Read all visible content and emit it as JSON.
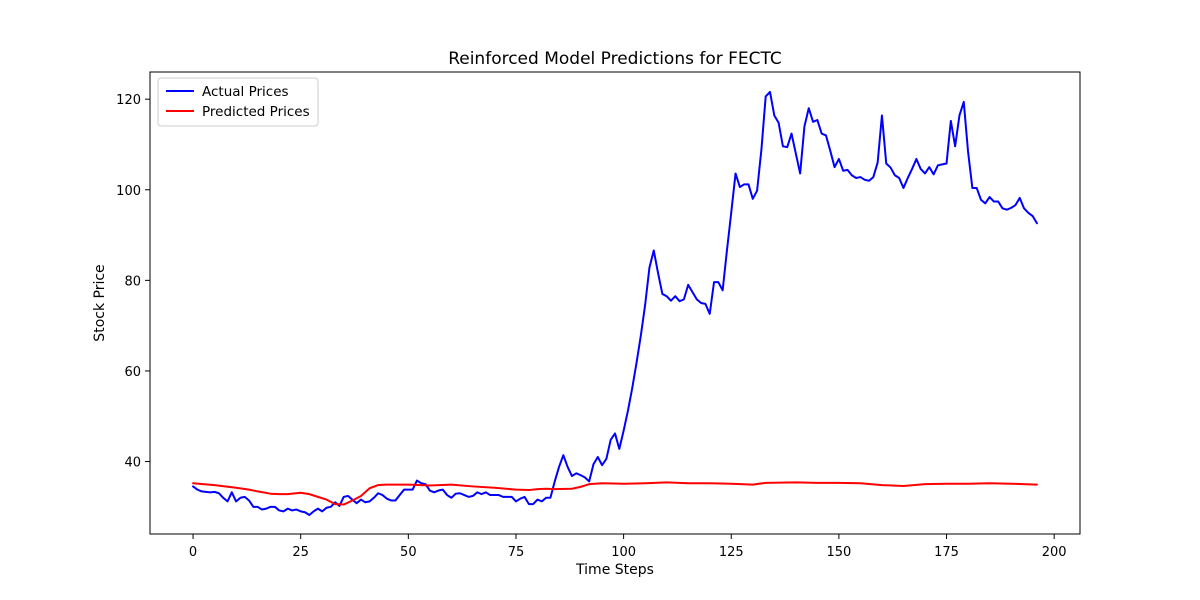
{
  "chart_data": {
    "type": "line",
    "title": "Reinforced Model Predictions for FECTC",
    "xlabel": "Time Steps",
    "ylabel": "Stock Price",
    "xlim": [
      -10,
      206
    ],
    "ylim": [
      24,
      126
    ],
    "xticks": [
      0,
      25,
      50,
      75,
      100,
      125,
      150,
      175,
      200
    ],
    "yticks": [
      40,
      60,
      80,
      100,
      120
    ],
    "grid": false,
    "legend_position": "upper-left",
    "series": [
      {
        "name": "Actual Prices",
        "color": "#0000ff",
        "x": [
          0,
          1,
          2,
          3,
          4,
          5,
          6,
          7,
          8,
          9,
          10,
          11,
          12,
          13,
          14,
          15,
          16,
          17,
          18,
          19,
          20,
          21,
          22,
          23,
          24,
          25,
          26,
          27,
          28,
          29,
          30,
          31,
          32,
          33,
          34,
          35,
          36,
          37,
          38,
          39,
          40,
          41,
          42,
          43,
          44,
          45,
          46,
          47,
          48,
          49,
          50,
          51,
          52,
          53,
          54,
          55,
          56,
          57,
          58,
          59,
          60,
          61,
          62,
          63,
          64,
          65,
          66,
          67,
          68,
          69,
          70,
          71,
          72,
          73,
          74,
          75,
          76,
          77,
          78,
          79,
          80,
          81,
          82,
          83,
          84,
          85,
          86,
          87,
          88,
          89,
          90,
          91,
          92,
          93,
          94,
          95,
          96,
          97,
          98,
          99,
          100,
          101,
          102,
          103,
          104,
          105,
          106,
          107,
          108,
          109,
          110,
          111,
          112,
          113,
          114,
          115,
          116,
          117,
          118,
          119,
          120,
          121,
          122,
          123,
          124,
          125,
          126,
          127,
          128,
          129,
          130,
          131,
          132,
          133,
          134,
          135,
          136,
          137,
          138,
          139,
          140,
          141,
          142,
          143,
          144,
          145,
          146,
          147,
          148,
          149,
          150,
          151,
          152,
          153,
          154,
          155,
          156,
          157,
          158,
          159,
          160,
          161,
          162,
          163,
          164,
          165,
          166,
          167,
          168,
          169,
          170,
          171,
          172,
          173,
          174,
          175,
          176,
          177,
          178,
          179,
          180,
          181,
          182,
          183,
          184,
          185,
          186,
          187,
          188,
          189,
          190,
          191,
          192,
          193,
          194,
          195,
          196
        ],
        "y": [
          34.5,
          33.8,
          33.4,
          33.3,
          33.2,
          33.3,
          33.0,
          32.0,
          31.2,
          33.2,
          31.2,
          32.0,
          32.2,
          31.4,
          30.0,
          30.0,
          29.4,
          29.6,
          30.0,
          30.0,
          29.2,
          29.0,
          29.6,
          29.2,
          29.4,
          29.0,
          28.8,
          28.2,
          29.0,
          29.6,
          29.0,
          29.8,
          30.0,
          31.0,
          30.2,
          32.2,
          32.4,
          31.6,
          30.8,
          31.6,
          31.0,
          31.2,
          32.0,
          33.0,
          32.6,
          31.8,
          31.4,
          31.4,
          32.6,
          33.8,
          33.8,
          33.8,
          35.8,
          35.2,
          35.0,
          33.6,
          33.2,
          33.6,
          33.8,
          32.6,
          32.0,
          32.9,
          33.0,
          32.6,
          32.2,
          32.4,
          33.2,
          32.8,
          33.2,
          32.6,
          32.6,
          32.6,
          32.2,
          32.2,
          32.2,
          31.2,
          31.8,
          32.2,
          30.6,
          30.6,
          31.6,
          31.2,
          32.0,
          32.0,
          35.6,
          38.8,
          41.4,
          38.8,
          36.8,
          37.4,
          37.0,
          36.5,
          35.6,
          39.4,
          41.0,
          39.2,
          40.6,
          44.8,
          46.2,
          42.8,
          46.8,
          51.2,
          56.2,
          61.8,
          67.8,
          74.6,
          82.8,
          86.6,
          81.6,
          77.0,
          76.5,
          75.5,
          76.5,
          75.4,
          75.8,
          79.0,
          77.4,
          75.8,
          75.0,
          74.8,
          72.6,
          79.6,
          79.6,
          77.8,
          86.6,
          95.0,
          103.6,
          100.6,
          101.2,
          101.2,
          98.0,
          99.8,
          108.8,
          120.6,
          121.6,
          116.4,
          114.8,
          109.6,
          109.4,
          112.4,
          108.0,
          103.6,
          114.0,
          118.0,
          115.0,
          115.4,
          112.4,
          112.0,
          108.6,
          105.0,
          106.8,
          104.2,
          104.4,
          103.2,
          102.6,
          102.8,
          102.2,
          102.0,
          102.8,
          106.0,
          116.4,
          105.8,
          104.9,
          103.2,
          102.6,
          100.4,
          102.6,
          104.6,
          106.8,
          104.6,
          103.6,
          105.0,
          103.4,
          105.4,
          105.6,
          105.8,
          115.2,
          109.6,
          116.4,
          119.4,
          108.4,
          100.4,
          100.4,
          97.8,
          97.0,
          98.4,
          97.4,
          97.4,
          95.9,
          95.6,
          96.0,
          96.6,
          98.2,
          95.9,
          94.9,
          94.2,
          92.6
        ]
      },
      {
        "name": "Predicted Prices",
        "color": "#ff0000",
        "x": [
          0,
          5,
          10,
          13,
          15,
          18,
          20,
          22,
          25,
          27,
          29,
          31,
          33,
          35,
          37,
          39,
          41,
          43,
          45,
          50,
          55,
          60,
          65,
          70,
          75,
          78,
          80,
          82,
          84,
          88,
          90,
          92,
          95,
          100,
          105,
          110,
          115,
          120,
          125,
          130,
          133,
          140,
          145,
          150,
          155,
          160,
          165,
          170,
          175,
          180,
          185,
          190,
          196
        ],
        "y": [
          35.2,
          34.8,
          34.2,
          33.8,
          33.4,
          32.9,
          32.8,
          32.8,
          33.1,
          32.8,
          32.2,
          31.6,
          30.6,
          30.5,
          31.4,
          32.4,
          34.1,
          34.8,
          34.9,
          34.9,
          34.7,
          34.9,
          34.5,
          34.2,
          33.8,
          33.7,
          33.9,
          34.0,
          33.9,
          34.0,
          34.4,
          35.0,
          35.2,
          35.1,
          35.2,
          35.4,
          35.2,
          35.2,
          35.1,
          34.9,
          35.3,
          35.4,
          35.3,
          35.3,
          35.2,
          34.8,
          34.6,
          35.0,
          35.1,
          35.1,
          35.2,
          35.1,
          34.9
        ]
      }
    ]
  }
}
